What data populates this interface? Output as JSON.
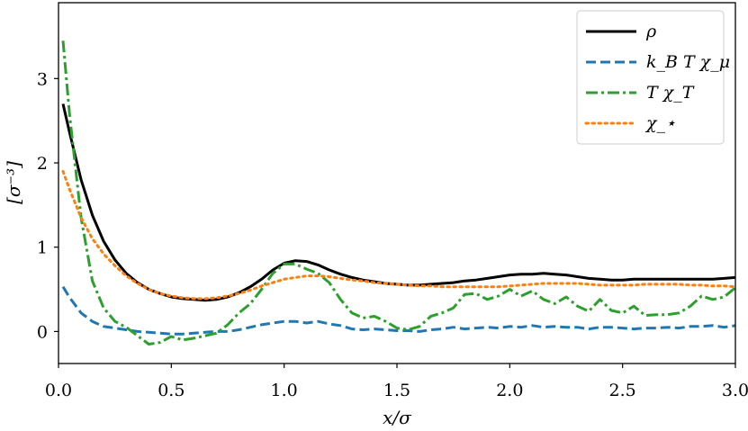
{
  "chart_data": {
    "type": "line",
    "title": "",
    "xlabel": "x/σ",
    "ylabel": "[σ⁻³]",
    "xlim": [
      0.0,
      3.0
    ],
    "ylim": [
      -0.38,
      3.9
    ],
    "xticks": [
      0.0,
      0.5,
      1.0,
      1.5,
      2.0,
      2.5,
      3.0
    ],
    "xtick_labels": [
      "0.0",
      "0.5",
      "1.0",
      "1.5",
      "2.0",
      "2.5",
      "3.0"
    ],
    "yticks": [
      0,
      1,
      2,
      3
    ],
    "ytick_labels": [
      "0",
      "1",
      "2",
      "3"
    ],
    "grid": false,
    "legend_position": "top-right",
    "series": [
      {
        "name": "ρ",
        "color": "#000000",
        "style": "solid",
        "x": [
          0.02,
          0.05,
          0.1,
          0.15,
          0.2,
          0.25,
          0.3,
          0.35,
          0.4,
          0.45,
          0.5,
          0.55,
          0.6,
          0.65,
          0.7,
          0.75,
          0.8,
          0.85,
          0.9,
          0.95,
          1.0,
          1.05,
          1.1,
          1.15,
          1.2,
          1.25,
          1.3,
          1.35,
          1.4,
          1.45,
          1.5,
          1.55,
          1.6,
          1.65,
          1.7,
          1.75,
          1.8,
          1.85,
          1.9,
          1.95,
          2.0,
          2.05,
          2.1,
          2.15,
          2.2,
          2.25,
          2.3,
          2.35,
          2.4,
          2.45,
          2.5,
          2.55,
          2.6,
          2.65,
          2.7,
          2.75,
          2.8,
          2.85,
          2.9,
          2.95,
          3.0
        ],
        "y": [
          2.7,
          2.35,
          1.8,
          1.38,
          1.07,
          0.85,
          0.69,
          0.58,
          0.5,
          0.45,
          0.41,
          0.39,
          0.38,
          0.37,
          0.38,
          0.41,
          0.46,
          0.53,
          0.62,
          0.73,
          0.81,
          0.84,
          0.83,
          0.79,
          0.73,
          0.68,
          0.64,
          0.61,
          0.59,
          0.57,
          0.56,
          0.55,
          0.55,
          0.56,
          0.57,
          0.58,
          0.6,
          0.61,
          0.63,
          0.65,
          0.67,
          0.68,
          0.68,
          0.69,
          0.68,
          0.67,
          0.65,
          0.63,
          0.62,
          0.61,
          0.61,
          0.62,
          0.62,
          0.62,
          0.62,
          0.62,
          0.62,
          0.62,
          0.62,
          0.63,
          0.64
        ]
      },
      {
        "name": "k_B T χ_μ",
        "color": "#1f77b4",
        "style": "dashed",
        "x": [
          0.02,
          0.05,
          0.1,
          0.15,
          0.2,
          0.25,
          0.3,
          0.35,
          0.4,
          0.45,
          0.5,
          0.55,
          0.6,
          0.65,
          0.7,
          0.75,
          0.8,
          0.85,
          0.9,
          0.95,
          1.0,
          1.05,
          1.1,
          1.15,
          1.2,
          1.25,
          1.3,
          1.35,
          1.4,
          1.45,
          1.5,
          1.55,
          1.6,
          1.65,
          1.7,
          1.75,
          1.8,
          1.85,
          1.9,
          1.95,
          2.0,
          2.05,
          2.1,
          2.15,
          2.2,
          2.25,
          2.3,
          2.35,
          2.4,
          2.45,
          2.5,
          2.55,
          2.6,
          2.65,
          2.7,
          2.75,
          2.8,
          2.85,
          2.9,
          2.95,
          3.0
        ],
        "y": [
          0.53,
          0.4,
          0.22,
          0.12,
          0.06,
          0.04,
          0.02,
          0.0,
          -0.01,
          -0.02,
          -0.03,
          -0.03,
          -0.02,
          -0.01,
          0.0,
          0.0,
          0.02,
          0.05,
          0.08,
          0.1,
          0.12,
          0.12,
          0.1,
          0.12,
          0.09,
          0.07,
          0.03,
          0.02,
          0.03,
          0.02,
          0.01,
          0.01,
          0.0,
          0.02,
          0.03,
          0.05,
          0.03,
          0.04,
          0.05,
          0.04,
          0.06,
          0.05,
          0.07,
          0.05,
          0.06,
          0.05,
          0.05,
          0.03,
          0.05,
          0.05,
          0.04,
          0.03,
          0.04,
          0.04,
          0.05,
          0.04,
          0.06,
          0.06,
          0.07,
          0.05,
          0.07
        ]
      },
      {
        "name": "T χ_T",
        "color": "#2ca02c",
        "style": "dashdot",
        "x": [
          0.02,
          0.05,
          0.1,
          0.15,
          0.2,
          0.25,
          0.3,
          0.35,
          0.4,
          0.45,
          0.5,
          0.55,
          0.6,
          0.65,
          0.7,
          0.75,
          0.8,
          0.85,
          0.9,
          0.95,
          1.0,
          1.05,
          1.1,
          1.15,
          1.2,
          1.25,
          1.3,
          1.35,
          1.4,
          1.45,
          1.5,
          1.55,
          1.6,
          1.65,
          1.7,
          1.75,
          1.8,
          1.85,
          1.9,
          1.95,
          2.0,
          2.05,
          2.1,
          2.15,
          2.2,
          2.25,
          2.3,
          2.35,
          2.4,
          2.45,
          2.5,
          2.55,
          2.6,
          2.65,
          2.7,
          2.75,
          2.8,
          2.85,
          2.9,
          2.95,
          3.0
        ],
        "y": [
          3.45,
          2.55,
          1.35,
          0.6,
          0.28,
          0.12,
          0.05,
          -0.05,
          -0.15,
          -0.13,
          -0.06,
          -0.1,
          -0.08,
          -0.05,
          -0.02,
          0.08,
          0.22,
          0.33,
          0.5,
          0.69,
          0.8,
          0.8,
          0.74,
          0.69,
          0.58,
          0.38,
          0.22,
          0.16,
          0.18,
          0.12,
          0.04,
          0.02,
          0.06,
          0.18,
          0.22,
          0.28,
          0.44,
          0.45,
          0.38,
          0.42,
          0.5,
          0.42,
          0.48,
          0.38,
          0.33,
          0.41,
          0.3,
          0.24,
          0.38,
          0.25,
          0.22,
          0.3,
          0.19,
          0.2,
          0.2,
          0.22,
          0.3,
          0.42,
          0.38,
          0.41,
          0.52
        ]
      },
      {
        "name": "χ_⋆",
        "color": "#ff7f0e",
        "style": "dotted",
        "x": [
          0.02,
          0.05,
          0.1,
          0.15,
          0.2,
          0.25,
          0.3,
          0.35,
          0.4,
          0.45,
          0.5,
          0.55,
          0.6,
          0.65,
          0.7,
          0.75,
          0.8,
          0.85,
          0.9,
          0.95,
          1.0,
          1.05,
          1.1,
          1.15,
          1.2,
          1.25,
          1.3,
          1.35,
          1.4,
          1.45,
          1.5,
          1.55,
          1.6,
          1.65,
          1.7,
          1.75,
          1.8,
          1.85,
          1.9,
          1.95,
          2.0,
          2.05,
          2.1,
          2.15,
          2.2,
          2.25,
          2.3,
          2.35,
          2.4,
          2.45,
          2.5,
          2.55,
          2.6,
          2.65,
          2.7,
          2.75,
          2.8,
          2.85,
          2.9,
          2.95,
          3.0
        ],
        "y": [
          1.9,
          1.68,
          1.35,
          1.1,
          0.92,
          0.78,
          0.66,
          0.57,
          0.5,
          0.45,
          0.42,
          0.4,
          0.39,
          0.39,
          0.4,
          0.42,
          0.45,
          0.49,
          0.54,
          0.58,
          0.62,
          0.64,
          0.66,
          0.66,
          0.65,
          0.63,
          0.61,
          0.6,
          0.58,
          0.57,
          0.56,
          0.55,
          0.54,
          0.54,
          0.53,
          0.53,
          0.53,
          0.53,
          0.53,
          0.53,
          0.54,
          0.55,
          0.56,
          0.57,
          0.57,
          0.57,
          0.57,
          0.56,
          0.55,
          0.55,
          0.55,
          0.55,
          0.56,
          0.56,
          0.56,
          0.56,
          0.55,
          0.55,
          0.54,
          0.54,
          0.53
        ]
      }
    ]
  }
}
